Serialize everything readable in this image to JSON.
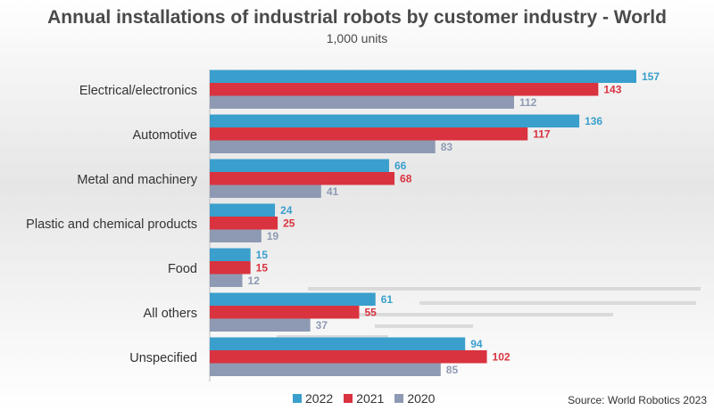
{
  "chart_data": {
    "type": "bar",
    "orientation": "horizontal",
    "title": "Annual installations of industrial robots by customer industry - World",
    "subtitle": "1,000 units",
    "categories": [
      "Electrical/electronics",
      "Automotive",
      "Metal and machinery",
      "Plastic and chemical products",
      "Food",
      "All others",
      "Unspecified"
    ],
    "series": [
      {
        "name": "2022",
        "color": "#3a9fcc",
        "values": [
          157,
          136,
          66,
          24,
          15,
          61,
          94
        ]
      },
      {
        "name": "2021",
        "color": "#d9333f",
        "values": [
          143,
          117,
          68,
          25,
          15,
          55,
          102
        ]
      },
      {
        "name": "2020",
        "color": "#8e9ab3",
        "values": [
          112,
          83,
          41,
          19,
          12,
          37,
          85
        ]
      }
    ],
    "xlim": [
      0,
      157
    ],
    "grid": false,
    "legend_position": "bottom",
    "source": "Source: World Robotics 2023"
  }
}
